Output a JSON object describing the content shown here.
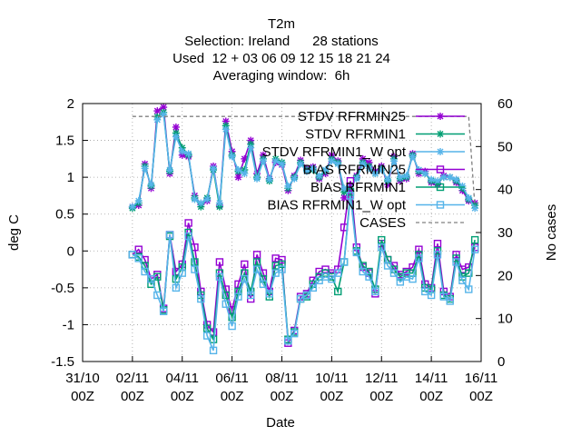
{
  "chart_data": {
    "type": "line",
    "title_lines": [
      "T2m",
      "Selection: Ireland      28 stations",
      "Used  12 + 03 06 09 12 15 18 21 24",
      "Averaging window:  6h"
    ],
    "xlabel": "Date",
    "ylabel": "deg C",
    "y2label": "No cases",
    "xlim": [
      "2023-10-31T00",
      "2023-11-16T00"
    ],
    "ylim": [
      -1.5,
      2
    ],
    "y2lim": [
      0,
      60
    ],
    "x_ticks": [
      "31/10\n00Z",
      "02/11\n00Z",
      "04/11\n00Z",
      "06/11\n00Z",
      "08/11\n00Z",
      "10/11\n00Z",
      "12/11\n00Z",
      "14/11\n00Z",
      "16/11\n00Z"
    ],
    "y_ticks": [
      "-1.5",
      "-1",
      "-0.5",
      "0",
      "0.5",
      "1",
      "1.5",
      "2"
    ],
    "y2_ticks": [
      "0",
      "10",
      "20",
      "30",
      "40",
      "50",
      "60"
    ],
    "grid": true,
    "legend_position": "top-right",
    "x": [
      "2023-11-02T00",
      "2023-11-02T06",
      "2023-11-02T12",
      "2023-11-02T18",
      "2023-11-03T00",
      "2023-11-03T06",
      "2023-11-03T12",
      "2023-11-03T18",
      "2023-11-04T00",
      "2023-11-04T06",
      "2023-11-04T12",
      "2023-11-04T18",
      "2023-11-05T00",
      "2023-11-05T06",
      "2023-11-05T12",
      "2023-11-05T18",
      "2023-11-06T00",
      "2023-11-06T06",
      "2023-11-06T12",
      "2023-11-06T18",
      "2023-11-07T00",
      "2023-11-07T06",
      "2023-11-07T12",
      "2023-11-07T18",
      "2023-11-08T00",
      "2023-11-08T06",
      "2023-11-08T12",
      "2023-11-08T18",
      "2023-11-09T00",
      "2023-11-09T06",
      "2023-11-09T12",
      "2023-11-09T18",
      "2023-11-10T00",
      "2023-11-10T06",
      "2023-11-10T12",
      "2023-11-10T18",
      "2023-11-11T00",
      "2023-11-11T06",
      "2023-11-11T12",
      "2023-11-11T18",
      "2023-11-12T00",
      "2023-11-12T06",
      "2023-11-12T12",
      "2023-11-12T18",
      "2023-11-13T00",
      "2023-11-13T06",
      "2023-11-13T12",
      "2023-11-13T18",
      "2023-11-14T00",
      "2023-11-14T06",
      "2023-11-14T12",
      "2023-11-14T18",
      "2023-11-15T00",
      "2023-11-15T06",
      "2023-11-15T12",
      "2023-11-15T18"
    ],
    "series": [
      {
        "name": "STDV RFRMIN25",
        "axis": "y",
        "color": "#9400d3",
        "marker": "star",
        "values": [
          0.6,
          0.62,
          1.18,
          0.85,
          1.9,
          1.95,
          1.05,
          1.68,
          1.3,
          1.28,
          0.75,
          0.63,
          0.68,
          1.15,
          0.62,
          1.76,
          1.35,
          1.0,
          1.25,
          1.5,
          1.05,
          1.3,
          0.98,
          1.2,
          1.17,
          0.82,
          1.02,
          1.23,
          1.12,
          1.14,
          0.98,
          1.05,
          1.3,
          1.22,
          0.72,
          0.82,
          1.02,
          1.25,
          1.2,
          1.08,
          1.15,
          0.9,
          1.28,
          0.95,
          0.98,
          1.32,
          1.05,
          1.08,
          0.93,
          0.9,
          1.02,
          1.0,
          0.93,
          0.82,
          0.68,
          0.65
        ]
      },
      {
        "name": "STDV RFRMIN1",
        "axis": "y",
        "color": "#009e73",
        "marker": "star",
        "values": [
          0.58,
          0.65,
          1.15,
          0.88,
          1.82,
          1.88,
          1.08,
          1.6,
          1.4,
          1.3,
          0.72,
          0.6,
          0.72,
          1.1,
          0.6,
          1.7,
          1.3,
          1.08,
          1.1,
          1.45,
          1.0,
          1.25,
          0.95,
          1.25,
          1.2,
          0.85,
          1.0,
          1.2,
          1.1,
          1.1,
          1.0,
          1.08,
          1.25,
          1.2,
          0.8,
          0.85,
          1.0,
          1.2,
          1.15,
          1.05,
          1.12,
          0.95,
          1.25,
          0.98,
          1.0,
          1.3,
          1.08,
          1.05,
          0.95,
          0.92,
          1.0,
          1.0,
          0.95,
          0.85,
          0.7,
          0.62
        ]
      },
      {
        "name": "STDV RFRMIN1_W opt",
        "axis": "y",
        "color": "#56b4e9",
        "marker": "star",
        "values": [
          0.6,
          0.68,
          1.12,
          0.9,
          1.78,
          1.85,
          1.1,
          1.55,
          1.35,
          1.32,
          0.7,
          0.65,
          0.7,
          1.12,
          0.65,
          1.65,
          1.28,
          1.1,
          1.05,
          1.4,
          0.98,
          1.22,
          0.97,
          1.22,
          1.18,
          0.88,
          0.98,
          1.18,
          1.08,
          1.12,
          1.02,
          1.1,
          1.22,
          1.18,
          0.85,
          0.88,
          0.98,
          1.18,
          1.12,
          1.05,
          1.1,
          0.97,
          1.22,
          1.0,
          1.02,
          1.28,
          1.1,
          1.05,
          0.97,
          0.95,
          1.0,
          1.0,
          0.97,
          0.88,
          0.72,
          0.58
        ]
      },
      {
        "name": "BIAS RFRMIN25",
        "axis": "y",
        "color": "#9400d3",
        "marker": "square",
        "values": [
          -0.05,
          0.02,
          -0.12,
          -0.38,
          -0.32,
          -0.78,
          0.22,
          -0.28,
          -0.18,
          0.38,
          0.05,
          -0.55,
          -1.0,
          -1.1,
          -0.15,
          -0.52,
          -0.8,
          -0.45,
          -0.18,
          -0.65,
          -0.05,
          -0.3,
          -0.55,
          -0.1,
          -0.12,
          -1.25,
          -1.08,
          -0.62,
          -0.58,
          -0.4,
          -0.28,
          -0.25,
          -0.3,
          -0.25,
          0.32,
          0.95,
          0.05,
          -0.22,
          -0.3,
          -0.58,
          0.1,
          -0.12,
          -0.2,
          -0.32,
          -0.28,
          -0.22,
          0.02,
          -0.45,
          -0.5,
          0.1,
          -0.55,
          -0.62,
          -0.05,
          -0.25,
          -0.22,
          0.05
        ]
      },
      {
        "name": "BIAS RFRMIN1",
        "axis": "y",
        "color": "#009e73",
        "marker": "square",
        "values": [
          -0.05,
          -0.08,
          -0.2,
          -0.45,
          -0.35,
          -0.8,
          0.2,
          -0.38,
          -0.22,
          0.25,
          -0.15,
          -0.6,
          -1.05,
          -1.2,
          -0.3,
          -0.6,
          -0.9,
          -0.55,
          -0.3,
          -0.55,
          -0.15,
          -0.38,
          -0.62,
          -0.2,
          -0.18,
          -1.2,
          -1.1,
          -0.65,
          -0.62,
          -0.45,
          -0.35,
          -0.3,
          -0.35,
          -0.55,
          -0.15,
          0.8,
          0.0,
          -0.2,
          -0.28,
          -0.52,
          0.15,
          -0.12,
          -0.25,
          -0.35,
          -0.3,
          -0.3,
          -0.05,
          -0.5,
          -0.52,
          0.0,
          -0.6,
          -0.65,
          -0.1,
          -0.35,
          -0.3,
          0.15
        ]
      },
      {
        "name": "BIAS RFRMIN1_W opt",
        "axis": "y",
        "color": "#56b4e9",
        "marker": "square",
        "values": [
          -0.05,
          -0.1,
          -0.28,
          -0.38,
          -0.6,
          -0.82,
          0.22,
          -0.5,
          -0.3,
          0.2,
          -0.25,
          -0.65,
          -1.15,
          -1.35,
          -0.35,
          -0.72,
          -1.02,
          -0.62,
          -0.38,
          -0.6,
          -0.25,
          -0.45,
          -0.58,
          -0.3,
          -0.25,
          -1.22,
          -1.12,
          -0.65,
          -0.6,
          -0.5,
          -0.4,
          -0.35,
          -0.38,
          -0.3,
          -0.15,
          0.75,
          -0.02,
          -0.28,
          -0.35,
          -0.55,
          0.05,
          -0.2,
          -0.3,
          -0.42,
          -0.35,
          -0.38,
          -0.1,
          -0.55,
          -0.6,
          -0.05,
          -0.62,
          -0.68,
          -0.15,
          -0.4,
          -0.52,
          0.02
        ]
      },
      {
        "name": "CASES",
        "axis": "y2",
        "color": "#808080",
        "marker": "none",
        "dash": true,
        "values": [
          57,
          57,
          57,
          57,
          57,
          57,
          57,
          57,
          57,
          57,
          57,
          57,
          57,
          57,
          57,
          57,
          57,
          57,
          57,
          57,
          57,
          57,
          57,
          57,
          57,
          57,
          57,
          57,
          57,
          57,
          57,
          57,
          57,
          57,
          57,
          57,
          57,
          57,
          57,
          57,
          57,
          57,
          57,
          57,
          57,
          57,
          57,
          57,
          57,
          57,
          57,
          57,
          57,
          57,
          57,
          36
        ]
      }
    ]
  }
}
